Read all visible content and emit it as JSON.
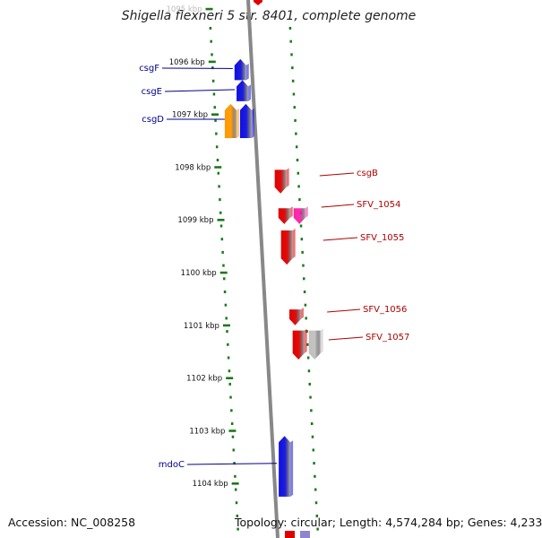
{
  "title": "Shigella flexneri 5 str. 8401, complete genome",
  "footer": {
    "accession": "Accession: NC_008258",
    "topology": "Topology: circular; Length: 4,574,284 bp; Genes: 4,233"
  },
  "colors": {
    "forward": "#e00000",
    "reverse": "#1010e0",
    "reverse_label": "#00008b",
    "forward_label": "#b00000",
    "orange": "#ff9900",
    "pink": "#ff22aa",
    "grey": "#c0c0c0",
    "ticks": "#1a7a1a",
    "axis": "#888888"
  },
  "ruler": {
    "unit": "kbp",
    "ticks": [
      {
        "kbp": 1095,
        "label": "1095 kbp"
      },
      {
        "kbp": 1096,
        "label": "1096 kbp"
      },
      {
        "kbp": 1097,
        "label": "1097 kbp"
      },
      {
        "kbp": 1098,
        "label": "1098 kbp"
      },
      {
        "kbp": 1099,
        "label": "1099 kbp"
      },
      {
        "kbp": 1100,
        "label": "1100 kbp"
      },
      {
        "kbp": 1101,
        "label": "1101 kbp"
      },
      {
        "kbp": 1102,
        "label": "1102 kbp"
      },
      {
        "kbp": 1103,
        "label": "1103 kbp"
      },
      {
        "kbp": 1104,
        "label": "1104 kbp"
      }
    ]
  },
  "genes": [
    {
      "name": "csgF",
      "start_kbp": 1095.95,
      "end_kbp": 1096.35,
      "strand": "reverse",
      "color": "#1010e0",
      "label": "csgF"
    },
    {
      "name": "csgE",
      "start_kbp": 1096.35,
      "end_kbp": 1096.75,
      "strand": "reverse",
      "color": "#1010e0",
      "label": "csgE"
    },
    {
      "name": "csgD",
      "start_kbp": 1096.8,
      "end_kbp": 1097.45,
      "strand": "reverse",
      "color": "#1010e0",
      "label": "csgD"
    },
    {
      "name": "orange",
      "start_kbp": 1096.8,
      "end_kbp": 1097.45,
      "strand": "reverse",
      "color": "#ff9900",
      "label": ""
    },
    {
      "name": "csgB",
      "start_kbp": 1098.05,
      "end_kbp": 1098.5,
      "strand": "forward",
      "color": "#e00000",
      "label": "csgB"
    },
    {
      "name": "SFV_1054",
      "start_kbp": 1098.78,
      "end_kbp": 1099.08,
      "strand": "forward",
      "color": "#e00000",
      "label": "SFV_1054"
    },
    {
      "name": "pink",
      "start_kbp": 1098.78,
      "end_kbp": 1099.08,
      "strand": "forward",
      "color": "#ff22aa",
      "label": ""
    },
    {
      "name": "SFV_1055",
      "start_kbp": 1099.2,
      "end_kbp": 1099.85,
      "strand": "forward",
      "color": "#e00000",
      "label": "SFV_1055"
    },
    {
      "name": "SFV_1056",
      "start_kbp": 1100.7,
      "end_kbp": 1101.0,
      "strand": "forward",
      "color": "#e00000",
      "label": "SFV_1056"
    },
    {
      "name": "SFV_1057",
      "start_kbp": 1101.1,
      "end_kbp": 1101.65,
      "strand": "forward",
      "color": "#e00000",
      "label": "SFV_1057"
    },
    {
      "name": "grey",
      "start_kbp": 1101.1,
      "end_kbp": 1101.65,
      "strand": "forward",
      "color": "#c0c0c0",
      "label": ""
    },
    {
      "name": "mdoC",
      "start_kbp": 1103.1,
      "end_kbp": 1104.25,
      "strand": "reverse",
      "color": "#1010e0",
      "label": "mdoC"
    }
  ]
}
